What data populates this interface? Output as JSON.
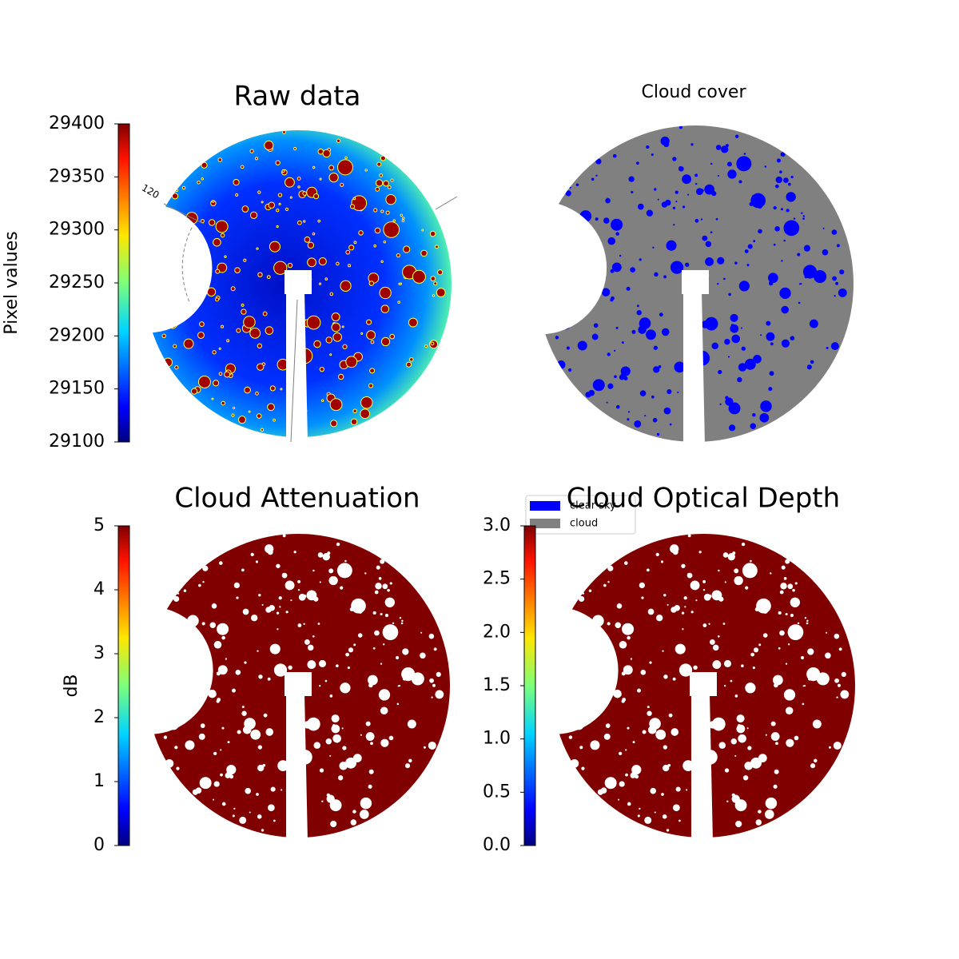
{
  "chart_data": [
    {
      "type": "image",
      "title": "Raw data",
      "annotation": "120",
      "colorbar": {
        "label": "Pixel values",
        "lim": [
          29100,
          29400
        ],
        "ticks": [
          29100,
          29150,
          29200,
          29250,
          29300,
          29350,
          29400
        ]
      }
    },
    {
      "type": "image",
      "title": "Cloud cover",
      "legend": [
        {
          "name": "clear sky",
          "color": "#0000ff"
        },
        {
          "name": "cloud",
          "color": "#808080"
        }
      ]
    },
    {
      "type": "image",
      "title": "Cloud Attenuation",
      "colorbar": {
        "label": "dB",
        "lim": [
          0,
          5
        ],
        "ticks": [
          0,
          1,
          2,
          3,
          4,
          5
        ]
      }
    },
    {
      "type": "image",
      "title": "Cloud Optical Depth",
      "colorbar": {
        "lim": [
          0,
          3
        ],
        "ticks": [
          {
            "value": 0,
            "label": "0.0"
          },
          0.5,
          {
            "value": 1,
            "label": "1.0"
          },
          1.5,
          {
            "value": 2,
            "label": "2.0"
          },
          2.5,
          {
            "value": 3,
            "label": "3.0"
          }
        ]
      }
    }
  ]
}
